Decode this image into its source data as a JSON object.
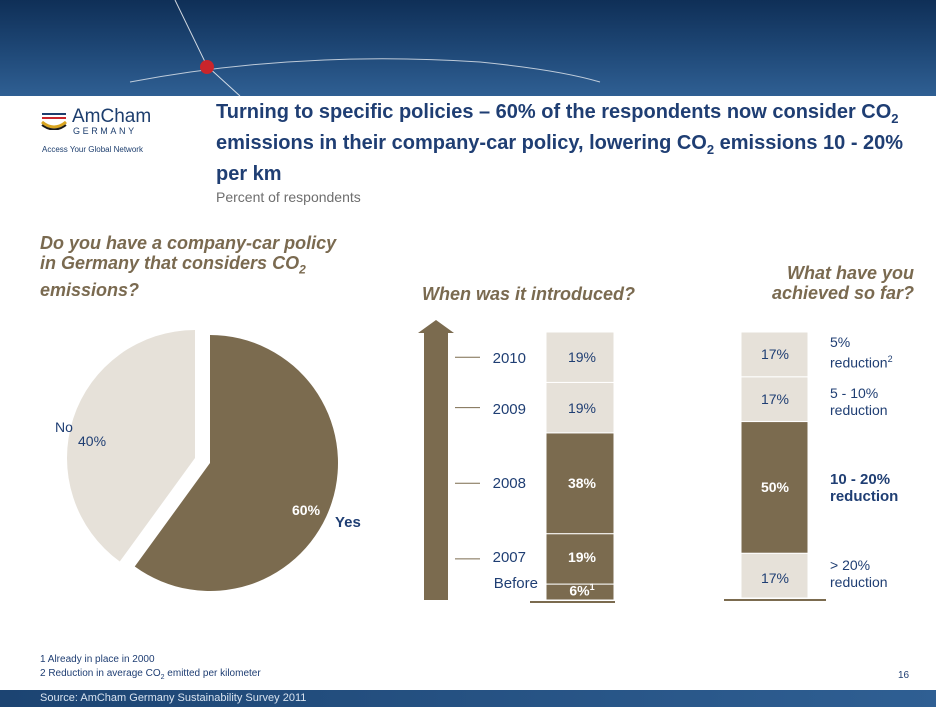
{
  "header": {
    "logo_name": "AmCham",
    "logo_sub": "GERMANY",
    "logo_tagline": "Access Your Global Network",
    "title_part1": "Turning to specific policies – 60% of the respondents now consider CO",
    "title_sub1": "2",
    "title_part2": " emissions in their company-car policy, lowering CO",
    "title_sub2": "2",
    "title_part3": " emissions 10 - 20% per km",
    "subtitle": "Percent of respondents"
  },
  "questions": {
    "q1_part1": "Do you have a company-car policy in Germany that considers CO",
    "q1_sub": "2",
    "q1_part2": " emissions?",
    "q2": "When was it introduced?",
    "q3": "What have you achieved so far?"
  },
  "chart_data": [
    {
      "type": "pie",
      "labels": [
        "Yes",
        "No"
      ],
      "values": [
        60,
        40
      ],
      "value_labels": [
        "60%",
        "40%"
      ],
      "colors": [
        "#7b6b4f",
        "#e6e1d9"
      ]
    },
    {
      "type": "bar",
      "stacked": true,
      "categories": [
        "Before",
        "2007",
        "2008",
        "2009",
        "2010"
      ],
      "values": [
        6,
        19,
        38,
        19,
        19
      ],
      "value_labels": [
        "6%",
        "19%",
        "38%",
        "19%",
        "19%"
      ],
      "footnote_marker": "1",
      "colors": [
        "#7b6b4f",
        "#7b6b4f",
        "#7b6b4f",
        "#e6e1d9",
        "#e6e1d9"
      ]
    },
    {
      "type": "bar",
      "stacked": true,
      "categories": [
        "> 20% reduction",
        "10 - 20% reduction",
        "5 - 10% reduction",
        "5% reduction"
      ],
      "values": [
        17,
        50,
        17,
        17
      ],
      "value_labels": [
        "17%",
        "50%",
        "17%",
        "17%"
      ],
      "colors": [
        "#e6e1d9",
        "#7b6b4f",
        "#e6e1d9",
        "#e6e1d9"
      ]
    }
  ],
  "achieved_labels": {
    "over20_line1": "> 20%",
    "over20_line2": "reduction",
    "b10_20_line1": "10 - 20%",
    "b10_20_line2": "reduction",
    "b5_10_line1": "5 - 10%",
    "b5_10_line2": "reduction",
    "b5_line1": "5%",
    "b5_line2": "reduction",
    "b5_marker": "2"
  },
  "footnotes": {
    "note1": "1 Already in place in 2000",
    "note2_part1": "2 Reduction in average CO",
    "note2_sub": "2",
    "note2_part2": " emitted per kilometer",
    "page_number": "16",
    "source": "Source: AmCham Germany Sustainability Survey 2011"
  }
}
